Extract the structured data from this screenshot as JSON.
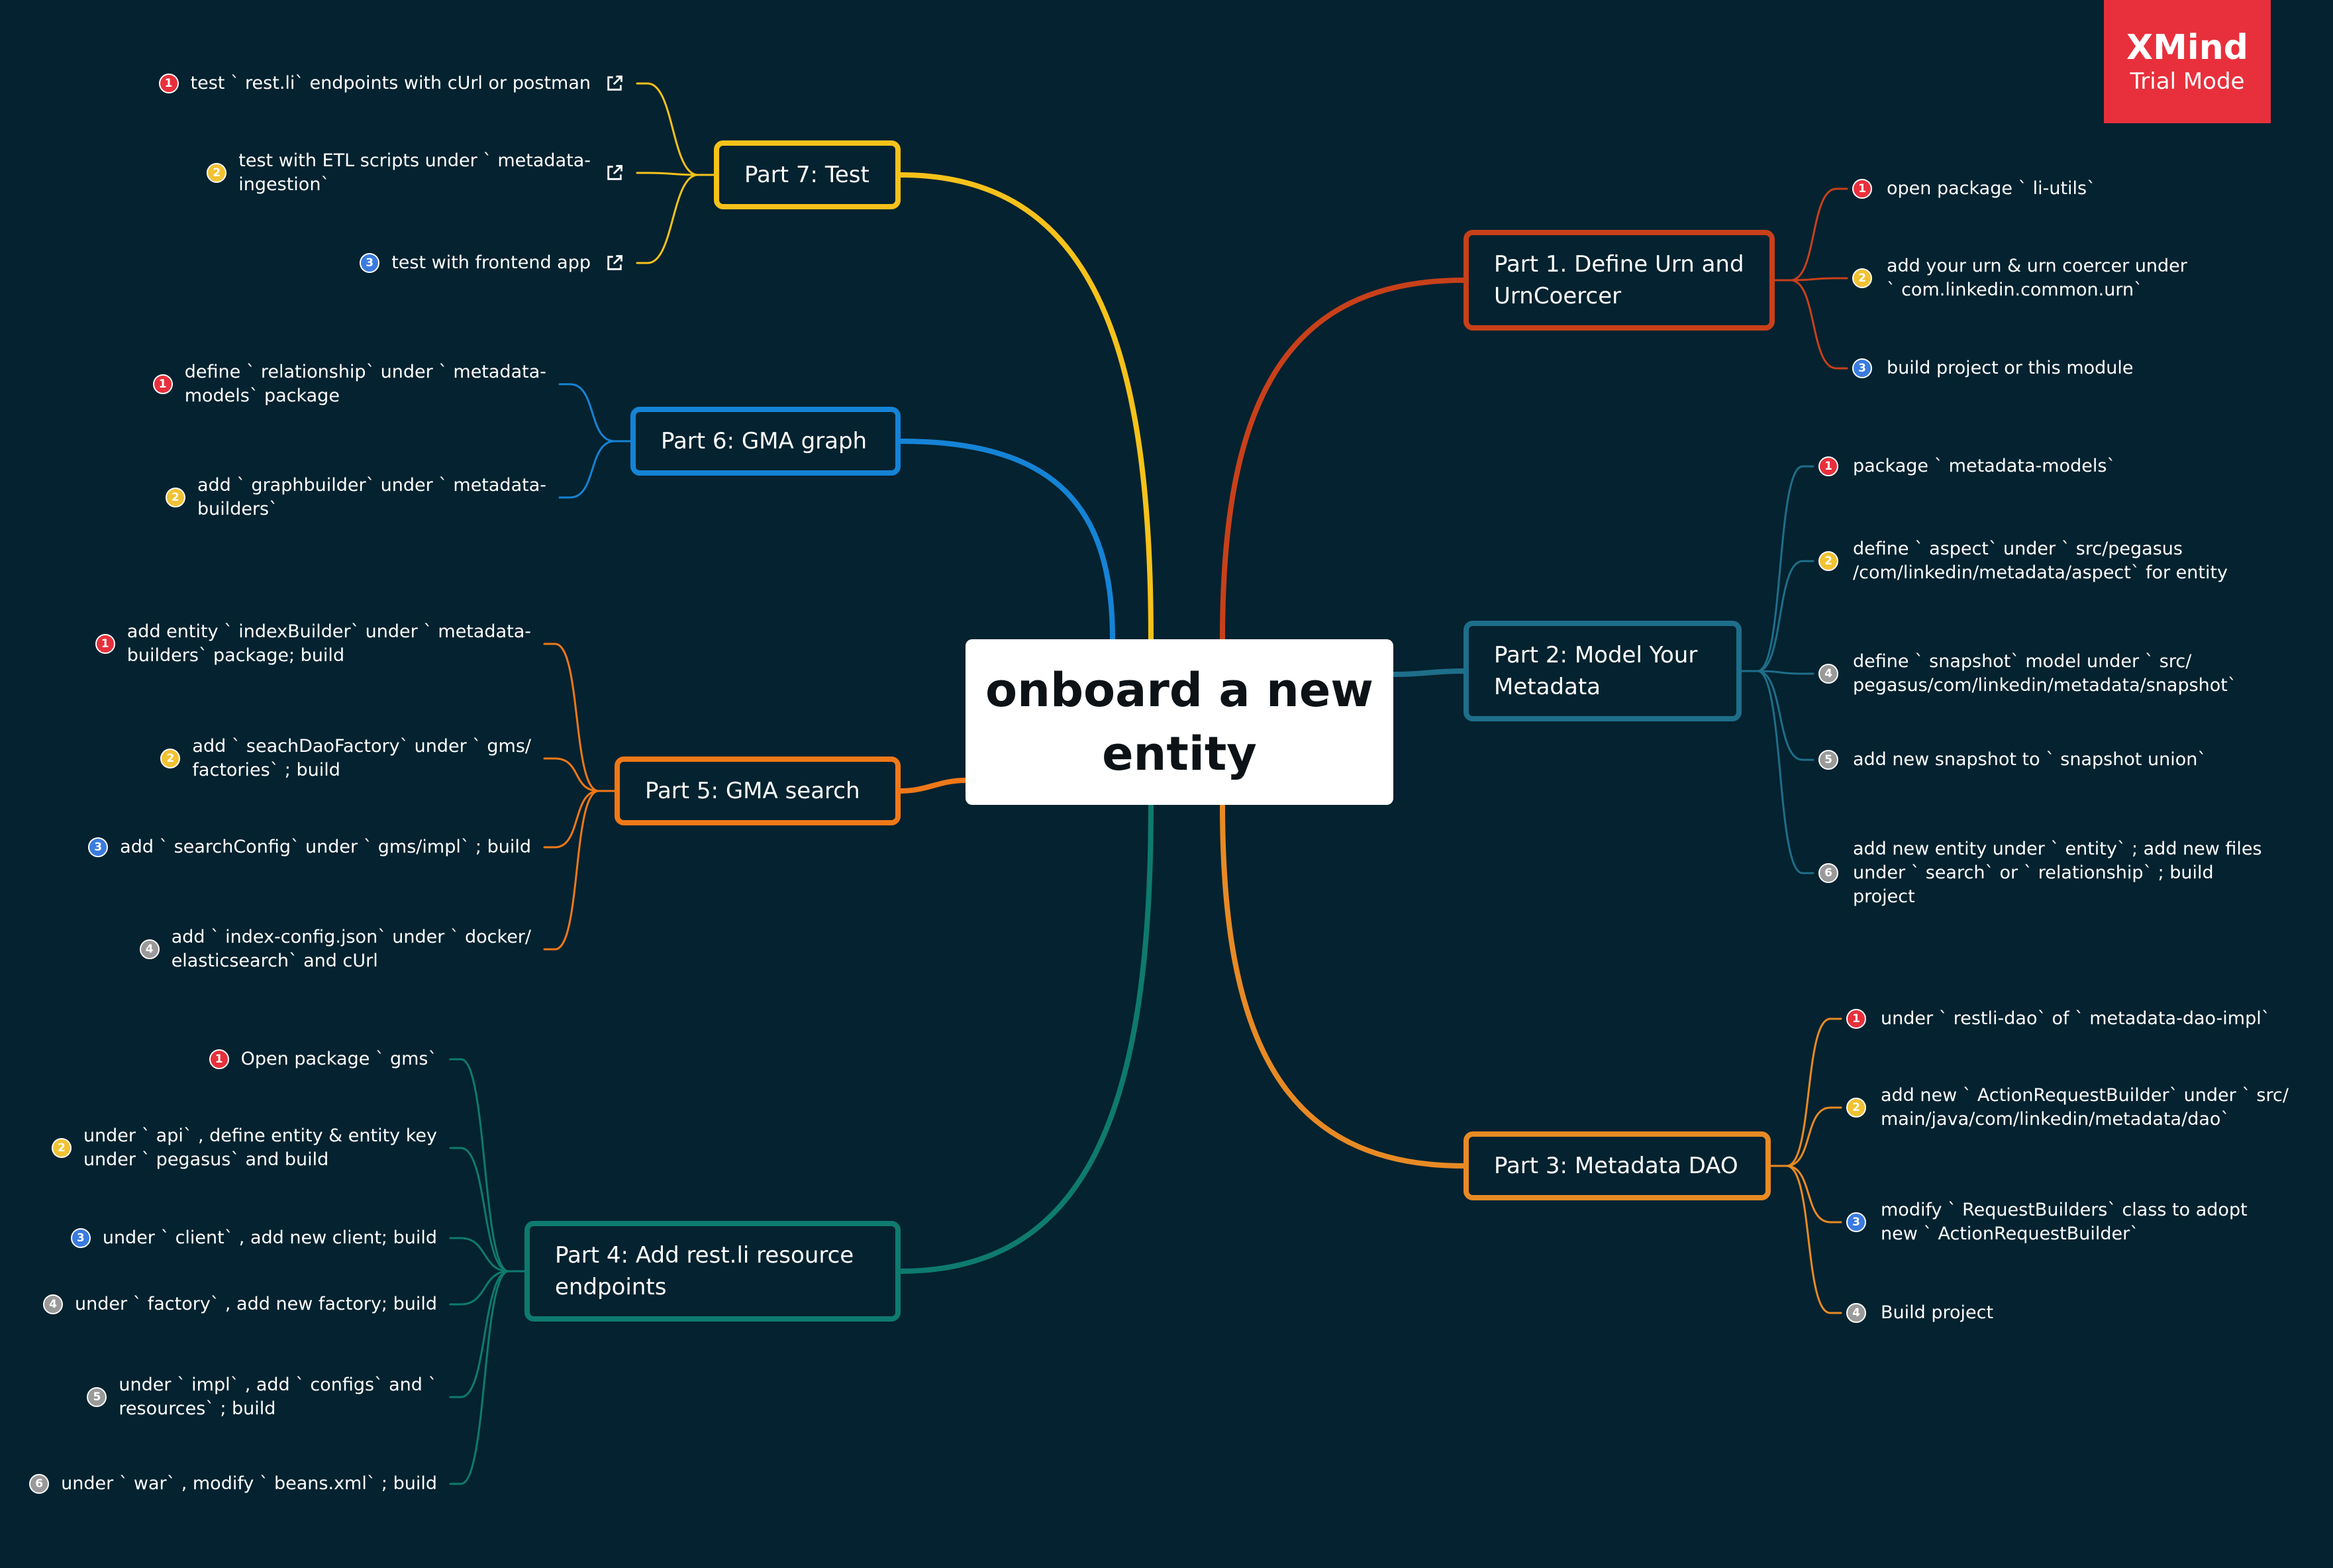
{
  "central": {
    "label": "onboard a new\nentity"
  },
  "watermark": {
    "title": "XMind",
    "subtitle": "Trial Mode",
    "color": "#e8303c"
  },
  "branches": [
    {
      "id": "part1",
      "side": "right",
      "color": "#c8401a",
      "label": "Part 1. Define Urn and\nUrnCoercer",
      "leaves": [
        {
          "num": "1",
          "badge_color": "#e8303c",
          "text": "open package ` li-utils`"
        },
        {
          "num": "2",
          "badge_color": "#f1c232",
          "text": "add your urn & urn coercer under\n` com.linkedin.common.urn`"
        },
        {
          "num": "3",
          "badge_color": "#3a7be0",
          "text": "build project or this module"
        }
      ]
    },
    {
      "id": "part2",
      "side": "right",
      "color": "#1e6e8a",
      "label": "Part 2: Model Your\nMetadata",
      "leaves": [
        {
          "num": "1",
          "badge_color": "#e8303c",
          "text": "package ` metadata-models`"
        },
        {
          "num": "2",
          "badge_color": "#f1c232",
          "text": "define ` aspect`  under ` src/pegasus\n/com/linkedin/metadata/aspect`  for entity"
        },
        {
          "num": "4",
          "badge_color": "#9a9a9a",
          "text": "define ` snapshot`  model under ` src/\npegasus/com/linkedin/metadata/snapshot`"
        },
        {
          "num": "5",
          "badge_color": "#9a9a9a",
          "text": "add new snapshot to ` snapshot union`"
        },
        {
          "num": "6",
          "badge_color": "#9a9a9a",
          "text": "add new entity under ` entity` ; add new files\nunder ` search`  or ` relationship` ; build\nproject"
        }
      ]
    },
    {
      "id": "part3",
      "side": "right",
      "color": "#e88a24",
      "label": "Part 3: Metadata DAO",
      "leaves": [
        {
          "num": "1",
          "badge_color": "#e8303c",
          "text": "under ` restli-dao`  of  ` metadata-dao-impl`"
        },
        {
          "num": "2",
          "badge_color": "#f1c232",
          "text": "add new ` ActionRequestBuilder`  under ` src/\nmain/java/com/linkedin/metadata/dao`"
        },
        {
          "num": "3",
          "badge_color": "#3a7be0",
          "text": "modify ` RequestBuilders`  class to adopt\nnew ` ActionRequestBuilder`"
        },
        {
          "num": "4",
          "badge_color": "#9a9a9a",
          "text": "Build project"
        }
      ]
    },
    {
      "id": "part4",
      "side": "left",
      "color": "#0e7a70",
      "label": "Part 4:  Add rest.li resource\nendpoints",
      "leaves": [
        {
          "num": "1",
          "badge_color": "#e8303c",
          "text": "Open package ` gms`"
        },
        {
          "num": "2",
          "badge_color": "#f1c232",
          "text": "under ` api` , define entity & entity key\nunder ` pegasus`  and build"
        },
        {
          "num": "3",
          "badge_color": "#3a7be0",
          "text": "under ` client` , add new client; build"
        },
        {
          "num": "4",
          "badge_color": "#9a9a9a",
          "text": "under ` factory` , add new factory; build"
        },
        {
          "num": "5",
          "badge_color": "#9a9a9a",
          "text": "under ` impl` , add ` configs`  and `\nresources` ; build"
        },
        {
          "num": "6",
          "badge_color": "#9a9a9a",
          "text": "under ` war` , modify ` beans.xml` ; build"
        }
      ]
    },
    {
      "id": "part5",
      "side": "left",
      "color": "#f07818",
      "label": "Part 5: GMA search",
      "leaves": [
        {
          "num": "1",
          "badge_color": "#e8303c",
          "text": "add entity ` indexBuilder`  under ` metadata-\nbuilders`  package; build"
        },
        {
          "num": "2",
          "badge_color": "#f1c232",
          "text": "add ` seachDaoFactory`  under ` gms/\nfactories` ; build"
        },
        {
          "num": "3",
          "badge_color": "#3a7be0",
          "text": "add ` searchConfig`  under ` gms/impl` ; build"
        },
        {
          "num": "4",
          "badge_color": "#9a9a9a",
          "text": "add ` index-config.json`  under ` docker/\nelasticsearch`  and cUrl"
        }
      ]
    },
    {
      "id": "part6",
      "side": "left",
      "color": "#1583d6",
      "label": "Part 6: GMA graph",
      "leaves": [
        {
          "num": "1",
          "badge_color": "#e8303c",
          "text": "define ` relationship`  under ` metadata-\nmodels`  package"
        },
        {
          "num": "2",
          "badge_color": "#f1c232",
          "text": "add ` graphbuilder`  under ` metadata-\nbuilders`"
        }
      ]
    },
    {
      "id": "part7",
      "side": "left",
      "color": "#f6c21a",
      "label": "Part 7: Test",
      "leaves": [
        {
          "num": "1",
          "badge_color": "#e8303c",
          "text": "test ` rest.li`  endpoints with cUrl or postman",
          "link": true
        },
        {
          "num": "2",
          "badge_color": "#f1c232",
          "text": "test with ETL scripts under ` metadata-\ningestion`",
          "link": true
        },
        {
          "num": "3",
          "badge_color": "#3a7be0",
          "text": "test with frontend app",
          "link": true
        }
      ]
    }
  ]
}
